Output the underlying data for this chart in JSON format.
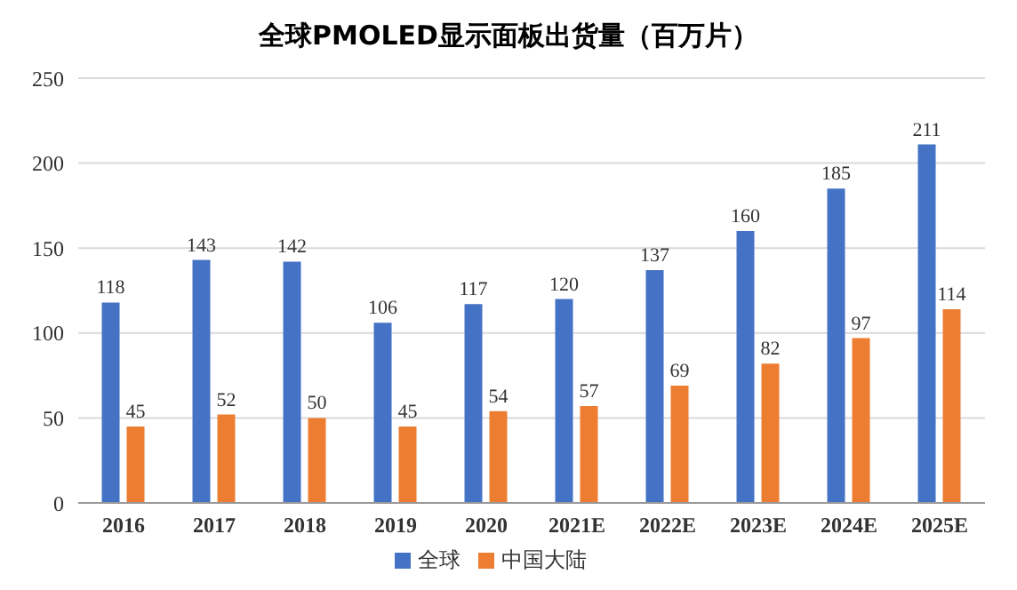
{
  "chart_data": {
    "type": "bar",
    "title": "全球PMOLED显示面板出货量（百万片）",
    "categories": [
      "2016",
      "2017",
      "2018",
      "2019",
      "2020",
      "2021E",
      "2022E",
      "2023E",
      "2024E",
      "2025E"
    ],
    "series": [
      {
        "name": "全球",
        "color": "#4472c4",
        "values": [
          118,
          143,
          142,
          106,
          117,
          120,
          137,
          160,
          185,
          211
        ]
      },
      {
        "name": "中国大陆",
        "color": "#ed7d31",
        "values": [
          45,
          52,
          50,
          45,
          54,
          57,
          69,
          82,
          97,
          114
        ]
      }
    ],
    "ylim": [
      0,
      250
    ],
    "yticks": [
      0,
      50,
      100,
      150,
      200,
      250
    ],
    "grid": "y",
    "legend": "bottom",
    "data_labels": true
  }
}
